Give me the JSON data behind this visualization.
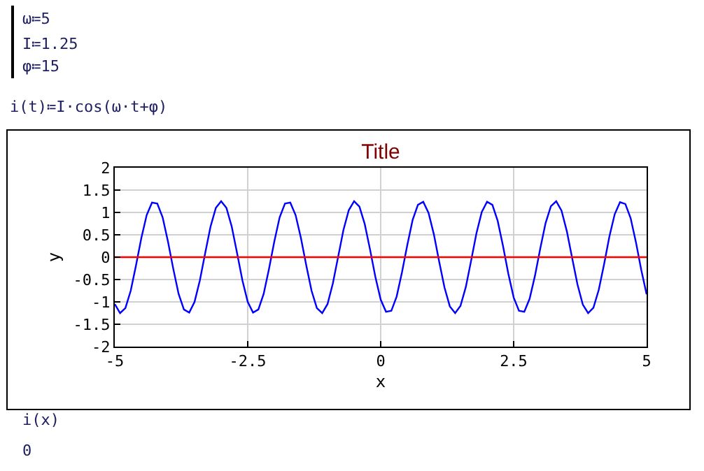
{
  "chart_data": {
    "type": "line",
    "title": "Title",
    "xlabel": "x",
    "ylabel": "y",
    "annotations": [
      "ω≔5",
      "I≔1.25",
      "φ≔15",
      "i(t)≔I·cos(ω·t+φ)",
      "i(x)",
      "0"
    ],
    "series": [
      {
        "color": "#0000ff",
        "x": [
          -5,
          -4.9,
          -4.8,
          -4.7,
          -4.6,
          -4.5,
          -4.4,
          -4.3,
          -4.2,
          -4.1,
          -4,
          -3.9,
          -3.8,
          -3.7,
          -3.6,
          -3.5,
          -3.4,
          -3.3,
          -3.2,
          -3.1,
          -3,
          -2.9,
          -2.8,
          -2.7,
          -2.6,
          -2.5,
          -2.4,
          -2.3,
          -2.2,
          -2.1,
          -2,
          -1.9,
          -1.8,
          -1.7,
          -1.6,
          -1.5,
          -1.4,
          -1.3,
          -1.2,
          -1.1,
          -1,
          -0.9,
          -0.8,
          -0.7,
          -0.6,
          -0.5,
          -0.4,
          -0.3,
          -0.2,
          -0.1,
          0,
          0.1,
          0.2,
          0.3,
          0.4,
          0.5,
          0.6,
          0.7,
          0.8,
          0.9,
          1,
          1.1,
          1.2,
          1.3,
          1.4,
          1.5,
          1.6,
          1.7,
          1.8,
          1.9,
          2,
          2.1,
          2.2,
          2.3,
          2.4,
          2.5,
          2.6,
          2.7,
          2.8,
          2.9,
          3,
          3.1,
          3.2,
          3.3,
          3.4,
          3.5,
          3.6,
          3.7,
          3.8,
          3.9,
          4,
          4.1,
          4.2,
          4.3,
          4.4,
          4.5,
          4.6,
          4.7,
          4.8,
          4.9,
          5
        ],
        "values": [
          -1.05,
          -1.25,
          -1.14,
          -0.75,
          -0.18,
          0.43,
          0.94,
          1.22,
          1.2,
          0.89,
          0.35,
          -0.26,
          -0.82,
          -1.17,
          -1.24,
          -1.0,
          -0.52,
          0.09,
          0.68,
          1.1,
          1.25,
          1.1,
          0.68,
          0.09,
          -0.52,
          -1.0,
          -1.24,
          -1.17,
          -0.82,
          -0.26,
          0.35,
          0.89,
          1.2,
          1.22,
          0.94,
          0.43,
          -0.18,
          -0.75,
          -1.14,
          -1.25,
          -1.05,
          -0.59,
          0.01,
          0.61,
          1.05,
          1.25,
          1.13,
          0.74,
          0.17,
          -0.44,
          -0.95,
          -1.22,
          -1.2,
          -0.88,
          -0.34,
          0.27,
          0.83,
          1.17,
          1.24,
          0.99,
          0.51,
          -0.1,
          -0.68,
          -1.1,
          -1.25,
          -1.09,
          -0.67,
          -0.08,
          0.53,
          1.01,
          1.24,
          1.17,
          0.81,
          0.25,
          -0.37,
          -0.9,
          -1.2,
          -1.22,
          -0.93,
          -0.42,
          0.19,
          0.76,
          1.14,
          1.25,
          1.04,
          0.58,
          -0.02,
          -0.61,
          -1.06,
          -1.25,
          -1.13,
          -0.73,
          -0.16,
          0.46,
          0.96,
          1.23,
          1.19,
          0.87,
          0.33,
          -0.29,
          -0.83
        ]
      },
      {
        "color": "#ff0000",
        "x": [
          -5,
          5
        ],
        "values": [
          0,
          0
        ]
      }
    ],
    "xlim": [
      -5,
      5
    ],
    "xticks": [
      -5,
      -2.5,
      0,
      2.5,
      5
    ],
    "ylim": [
      -2,
      2
    ],
    "yticks": [
      -2,
      -1.5,
      -1,
      -0.5,
      0,
      0.5,
      1,
      1.5,
      2
    ],
    "grid": true
  }
}
